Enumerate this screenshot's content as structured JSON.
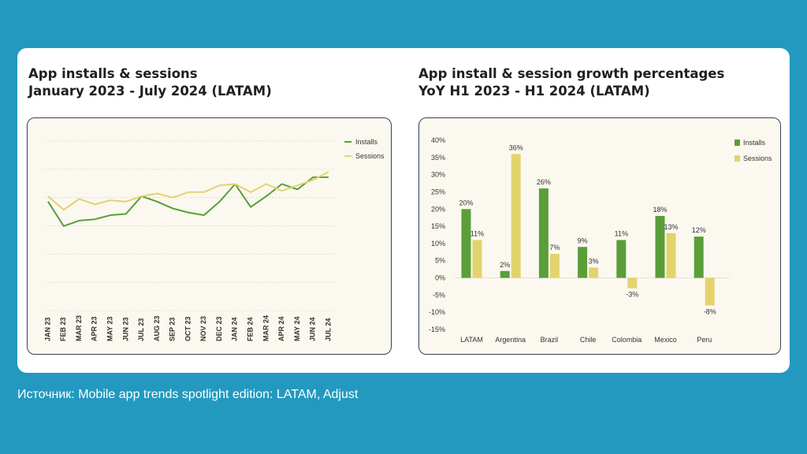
{
  "source": "Источник: Mobile app trends spotlight edition: LATAM, Adjust",
  "colors": {
    "installs": "#5a9e3a",
    "sessions": "#e3d36d",
    "background": "#2399bf"
  },
  "chart_data": [
    {
      "type": "line",
      "title_line1": "App installs & sessions",
      "title_line2": "January 2023 - July 2024 (LATAM)",
      "x": [
        "JAN 23",
        "FEB 23",
        "MAR 23",
        "APR 23",
        "MAY 23",
        "JUN 23",
        "JUL 23",
        "AUG 23",
        "SEP 23",
        "OCT 23",
        "NOV 23",
        "DEC 23",
        "JAN 24",
        "FEB 24",
        "MAR 24",
        "APR 24",
        "MAY 24",
        "JUN 24",
        "JUL 24"
      ],
      "series": [
        {
          "name": "Installs",
          "values": [
            78,
            60,
            64,
            65,
            68,
            69,
            82,
            78,
            73,
            70,
            68,
            78,
            91,
            74,
            82,
            91,
            87,
            96,
            96
          ]
        },
        {
          "name": "Sessions",
          "values": [
            82,
            72,
            80,
            76,
            79,
            78,
            82,
            84,
            81,
            85,
            85,
            90,
            91,
            85,
            91,
            86,
            90,
            94,
            100
          ]
        }
      ],
      "ylim": [
        0,
        125
      ],
      "legend": "top-right",
      "y_ticks_shown": false
    },
    {
      "type": "bar",
      "title_line1": "App install & session growth percentages",
      "title_line2": "YoY H1 2023 - H1 2024 (LATAM)",
      "categories": [
        "LATAM",
        "Argentina",
        "Brazil",
        "Chile",
        "Colombia",
        "Mexico",
        "Peru"
      ],
      "series": [
        {
          "name": "Installs",
          "values": [
            20,
            2,
            26,
            9,
            11,
            18,
            12
          ],
          "labels": [
            "20%",
            "2%",
            "26%",
            "9%",
            "11%",
            "18%",
            "12%"
          ]
        },
        {
          "name": "Sessions",
          "values": [
            11,
            36,
            7,
            3,
            -3,
            13,
            -8
          ],
          "labels": [
            "11%",
            "36%",
            "7%",
            "3%",
            "-3%",
            "13%",
            "-8%"
          ]
        }
      ],
      "y_ticks": [
        "40%",
        "35%",
        "30%",
        "25%",
        "20%",
        "15%",
        "10%",
        "5%",
        "0%",
        "-5%",
        "-10%",
        "-15%"
      ],
      "ylim": [
        -15,
        40
      ],
      "legend": "top-right"
    }
  ]
}
